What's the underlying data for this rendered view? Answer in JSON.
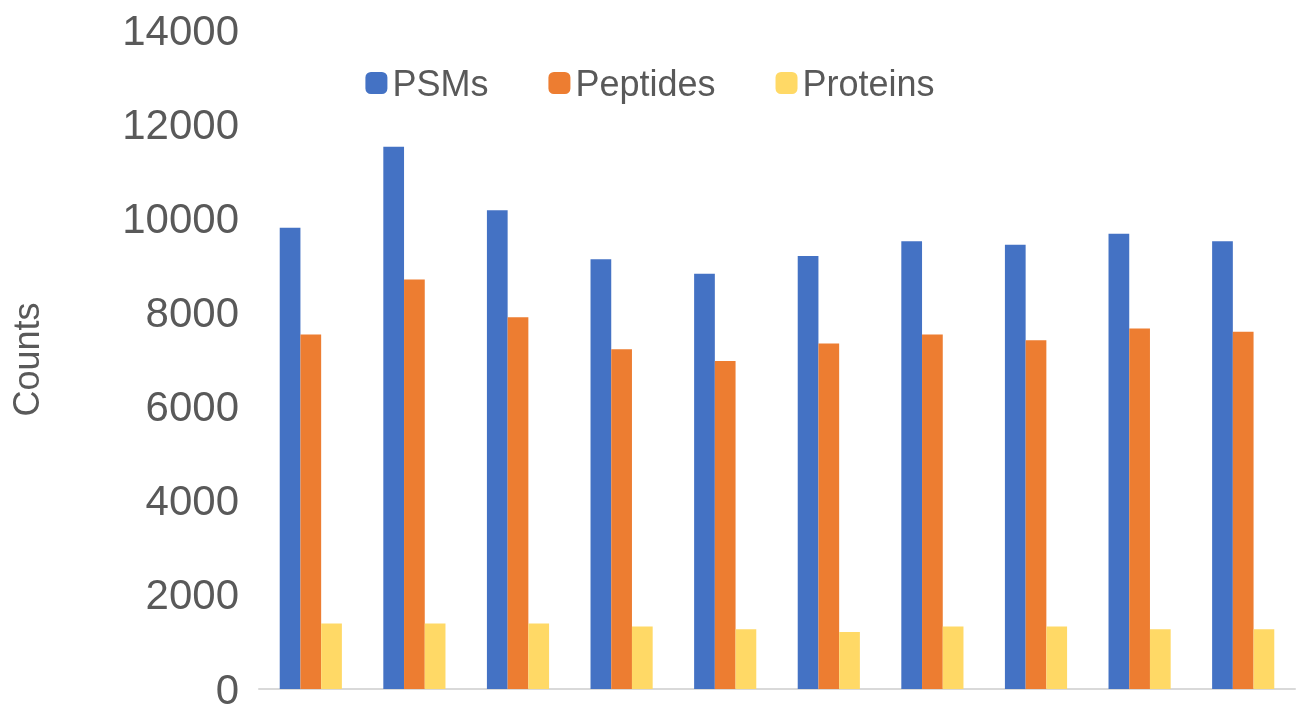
{
  "chart_data": {
    "type": "bar",
    "ylabel": "Counts",
    "categories": [
      null,
      null,
      null,
      null,
      null,
      null,
      null,
      null,
      null,
      null
    ],
    "series": [
      {
        "name": "PSMs",
        "color": "#4472c4",
        "values": [
          9800,
          11520,
          10170,
          9130,
          8820,
          9200,
          9510,
          9440,
          9670,
          9510
        ]
      },
      {
        "name": "Peptides",
        "color": "#ed7d31",
        "values": [
          7530,
          8700,
          7900,
          7220,
          6970,
          7340,
          7530,
          7410,
          7660,
          7590
        ]
      },
      {
        "name": "Proteins",
        "color": "#ffd966",
        "values": [
          1390,
          1390,
          1390,
          1330,
          1270,
          1210,
          1330,
          1330,
          1270,
          1270
        ]
      }
    ],
    "ylim": [
      0,
      14000
    ],
    "yticks": [
      0,
      2000,
      4000,
      6000,
      8000,
      10000,
      12000,
      14000
    ],
    "grid": false,
    "legend": "top"
  }
}
